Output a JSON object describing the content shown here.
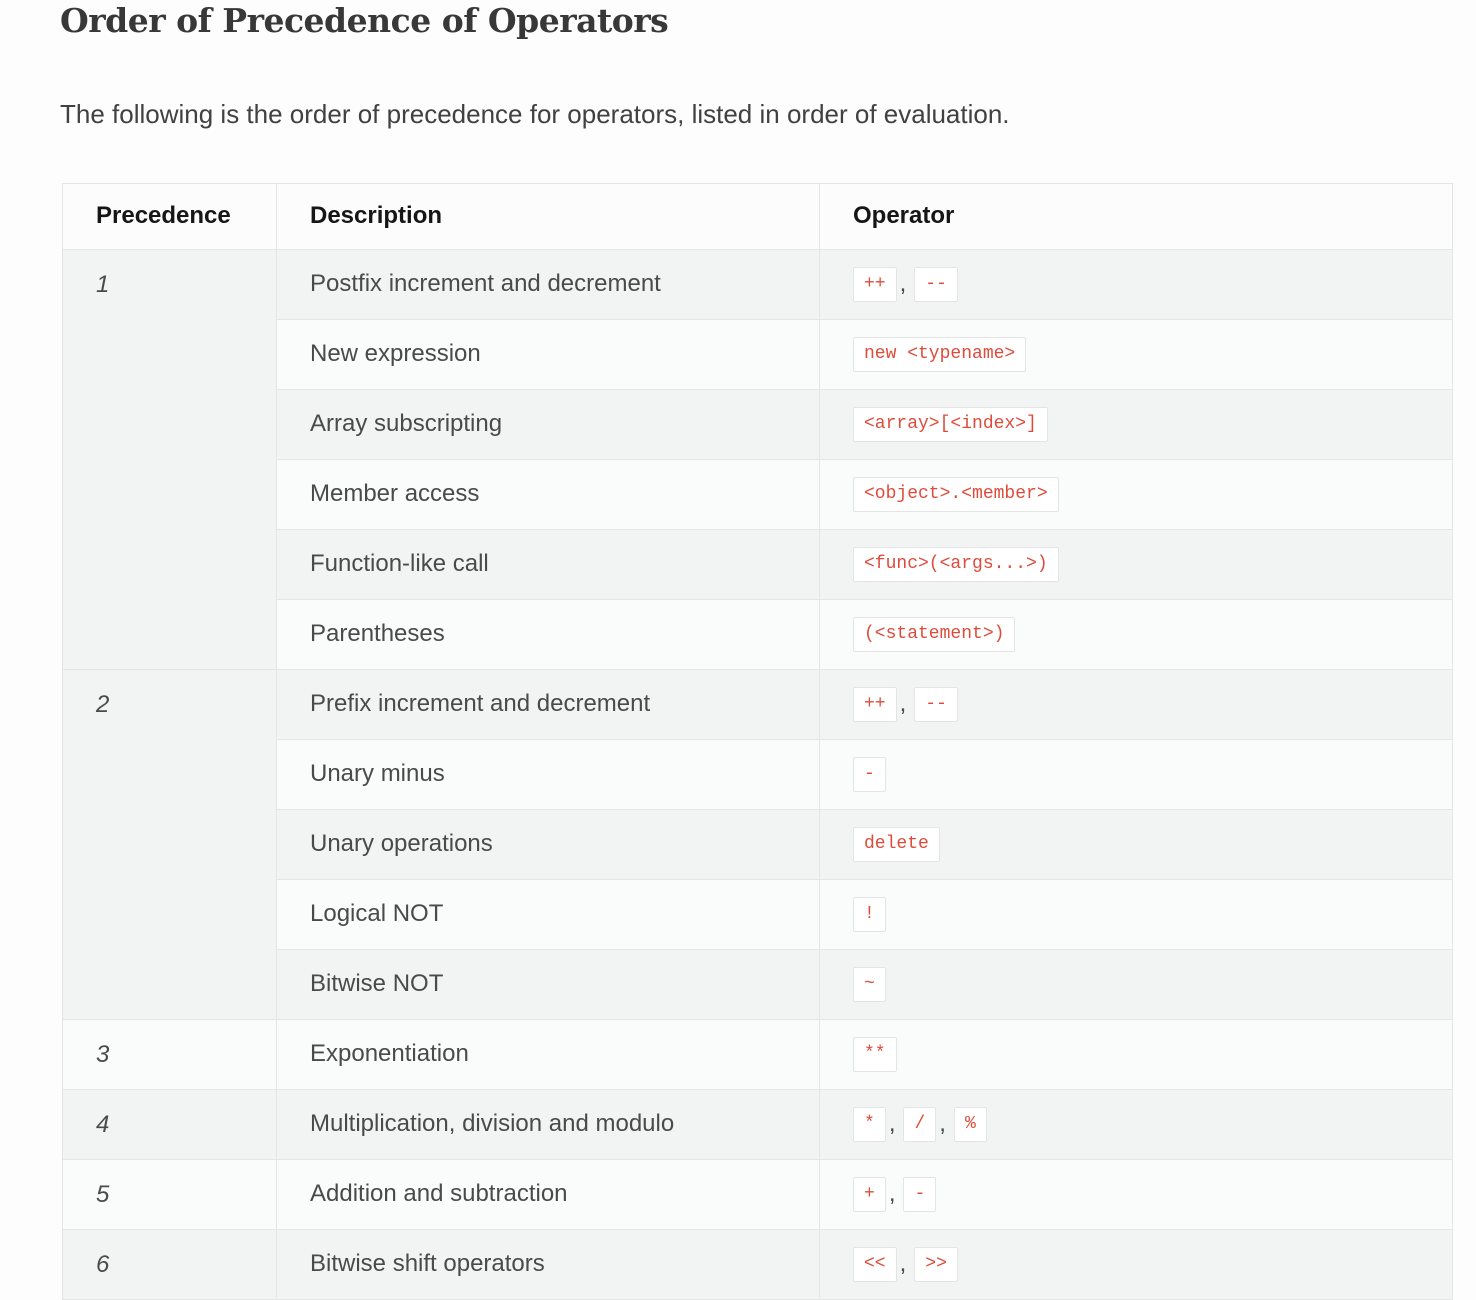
{
  "page": {
    "title": "Order of Precedence of Operators",
    "intro": "The following is the order of precedence for operators, listed in order of evaluation."
  },
  "colors": {
    "code_red": "#dd4c3b",
    "row_stripe_gray": "#f2f3f3",
    "row_stripe_light": "#fafbfb",
    "table_border": "#e4e6e6"
  },
  "table": {
    "headers": [
      "Precedence",
      "Description",
      "Operator"
    ],
    "operator_separator": ",",
    "groups": [
      {
        "precedence": "1",
        "rows": [
          {
            "description": "Postfix increment and decrement",
            "operators": [
              "++",
              "--"
            ]
          },
          {
            "description": "New expression",
            "operators": [
              "new <typename>"
            ]
          },
          {
            "description": "Array subscripting",
            "operators": [
              "<array>[<index>]"
            ]
          },
          {
            "description": "Member access",
            "operators": [
              "<object>.<member>"
            ]
          },
          {
            "description": "Function-like call",
            "operators": [
              "<func>(<args...>)"
            ]
          },
          {
            "description": "Parentheses",
            "operators": [
              "(<statement>)"
            ]
          }
        ]
      },
      {
        "precedence": "2",
        "rows": [
          {
            "description": "Prefix increment and decrement",
            "operators": [
              "++",
              "--"
            ]
          },
          {
            "description": "Unary minus",
            "operators": [
              "-"
            ]
          },
          {
            "description": "Unary operations",
            "operators": [
              "delete"
            ]
          },
          {
            "description": "Logical NOT",
            "operators": [
              "!"
            ]
          },
          {
            "description": "Bitwise NOT",
            "operators": [
              "~"
            ]
          }
        ]
      },
      {
        "precedence": "3",
        "rows": [
          {
            "description": "Exponentiation",
            "operators": [
              "**"
            ]
          }
        ]
      },
      {
        "precedence": "4",
        "rows": [
          {
            "description": "Multiplication, division and modulo",
            "operators": [
              "*",
              "/",
              "%"
            ]
          }
        ]
      },
      {
        "precedence": "5",
        "rows": [
          {
            "description": "Addition and subtraction",
            "operators": [
              "+",
              "-"
            ]
          }
        ]
      },
      {
        "precedence": "6",
        "rows": [
          {
            "description": "Bitwise shift operators",
            "operators": [
              "<<",
              ">>"
            ]
          }
        ]
      }
    ]
  }
}
